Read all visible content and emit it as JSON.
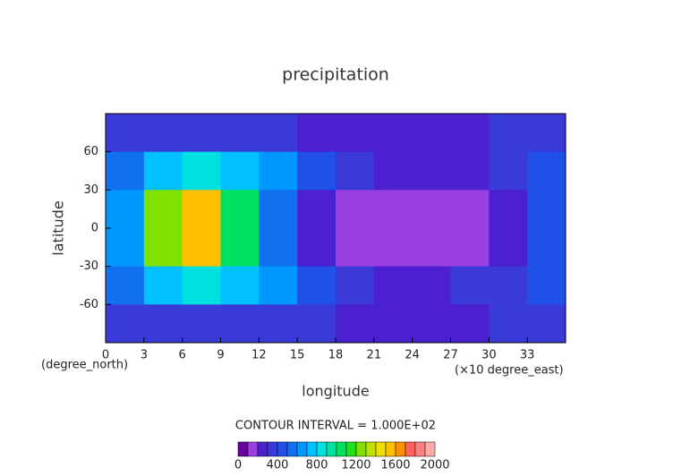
{
  "chart_data": {
    "type": "heatmap",
    "title": "precipitation",
    "xlabel": "longitude",
    "ylabel": "latitude",
    "x_note_left": "(degree_north)",
    "x_note_right": "(×10 degree_east)",
    "x": [
      1.5,
      4.5,
      7.5,
      10.5,
      13.5,
      16.5,
      19.5,
      22.5,
      25.5,
      28.5,
      31.5,
      34.5
    ],
    "y": [
      75,
      45,
      15,
      -15,
      -45,
      -75
    ],
    "z": [
      [
        300,
        300,
        300,
        300,
        300,
        250,
        250,
        250,
        250,
        250,
        300,
        300
      ],
      [
        500,
        700,
        800,
        700,
        600,
        400,
        300,
        200,
        200,
        250,
        300,
        400
      ],
      [
        600,
        1200,
        1500,
        1000,
        500,
        200,
        150,
        100,
        100,
        150,
        250,
        400
      ],
      [
        600,
        1200,
        1500,
        1000,
        500,
        200,
        150,
        100,
        100,
        150,
        250,
        400
      ],
      [
        500,
        700,
        800,
        700,
        600,
        400,
        300,
        250,
        250,
        300,
        350,
        450
      ],
      [
        300,
        300,
        300,
        300,
        300,
        300,
        250,
        250,
        250,
        250,
        300,
        300
      ]
    ],
    "xlim": [
      0,
      36
    ],
    "xticks": [
      0,
      3,
      6,
      9,
      12,
      15,
      18,
      21,
      24,
      27,
      30,
      33
    ],
    "ylim": [
      -90,
      90
    ],
    "yticks": [
      -60,
      -30,
      0,
      30,
      60
    ],
    "colorbar": {
      "title": "CONTOUR INTERVAL = 1.000E+02",
      "levels": [
        0,
        100,
        200,
        300,
        400,
        500,
        600,
        700,
        800,
        900,
        1000,
        1100,
        1200,
        1300,
        1400,
        1500,
        1600,
        1700,
        1800,
        1900,
        2000
      ],
      "colors": [
        "#6a00a0",
        "#9a40e0",
        "#4a20d0",
        "#3a3ad8",
        "#2050e8",
        "#1070f0",
        "#0098ff",
        "#00c0ff",
        "#00e0e0",
        "#00e0a0",
        "#00e060",
        "#20e020",
        "#80e000",
        "#c0e000",
        "#f0e000",
        "#ffc000",
        "#ff9000",
        "#ff6060",
        "#ff8080",
        "#ffa8a8"
      ],
      "ticks": [
        0,
        400,
        800,
        1200,
        1600,
        2000
      ]
    }
  }
}
